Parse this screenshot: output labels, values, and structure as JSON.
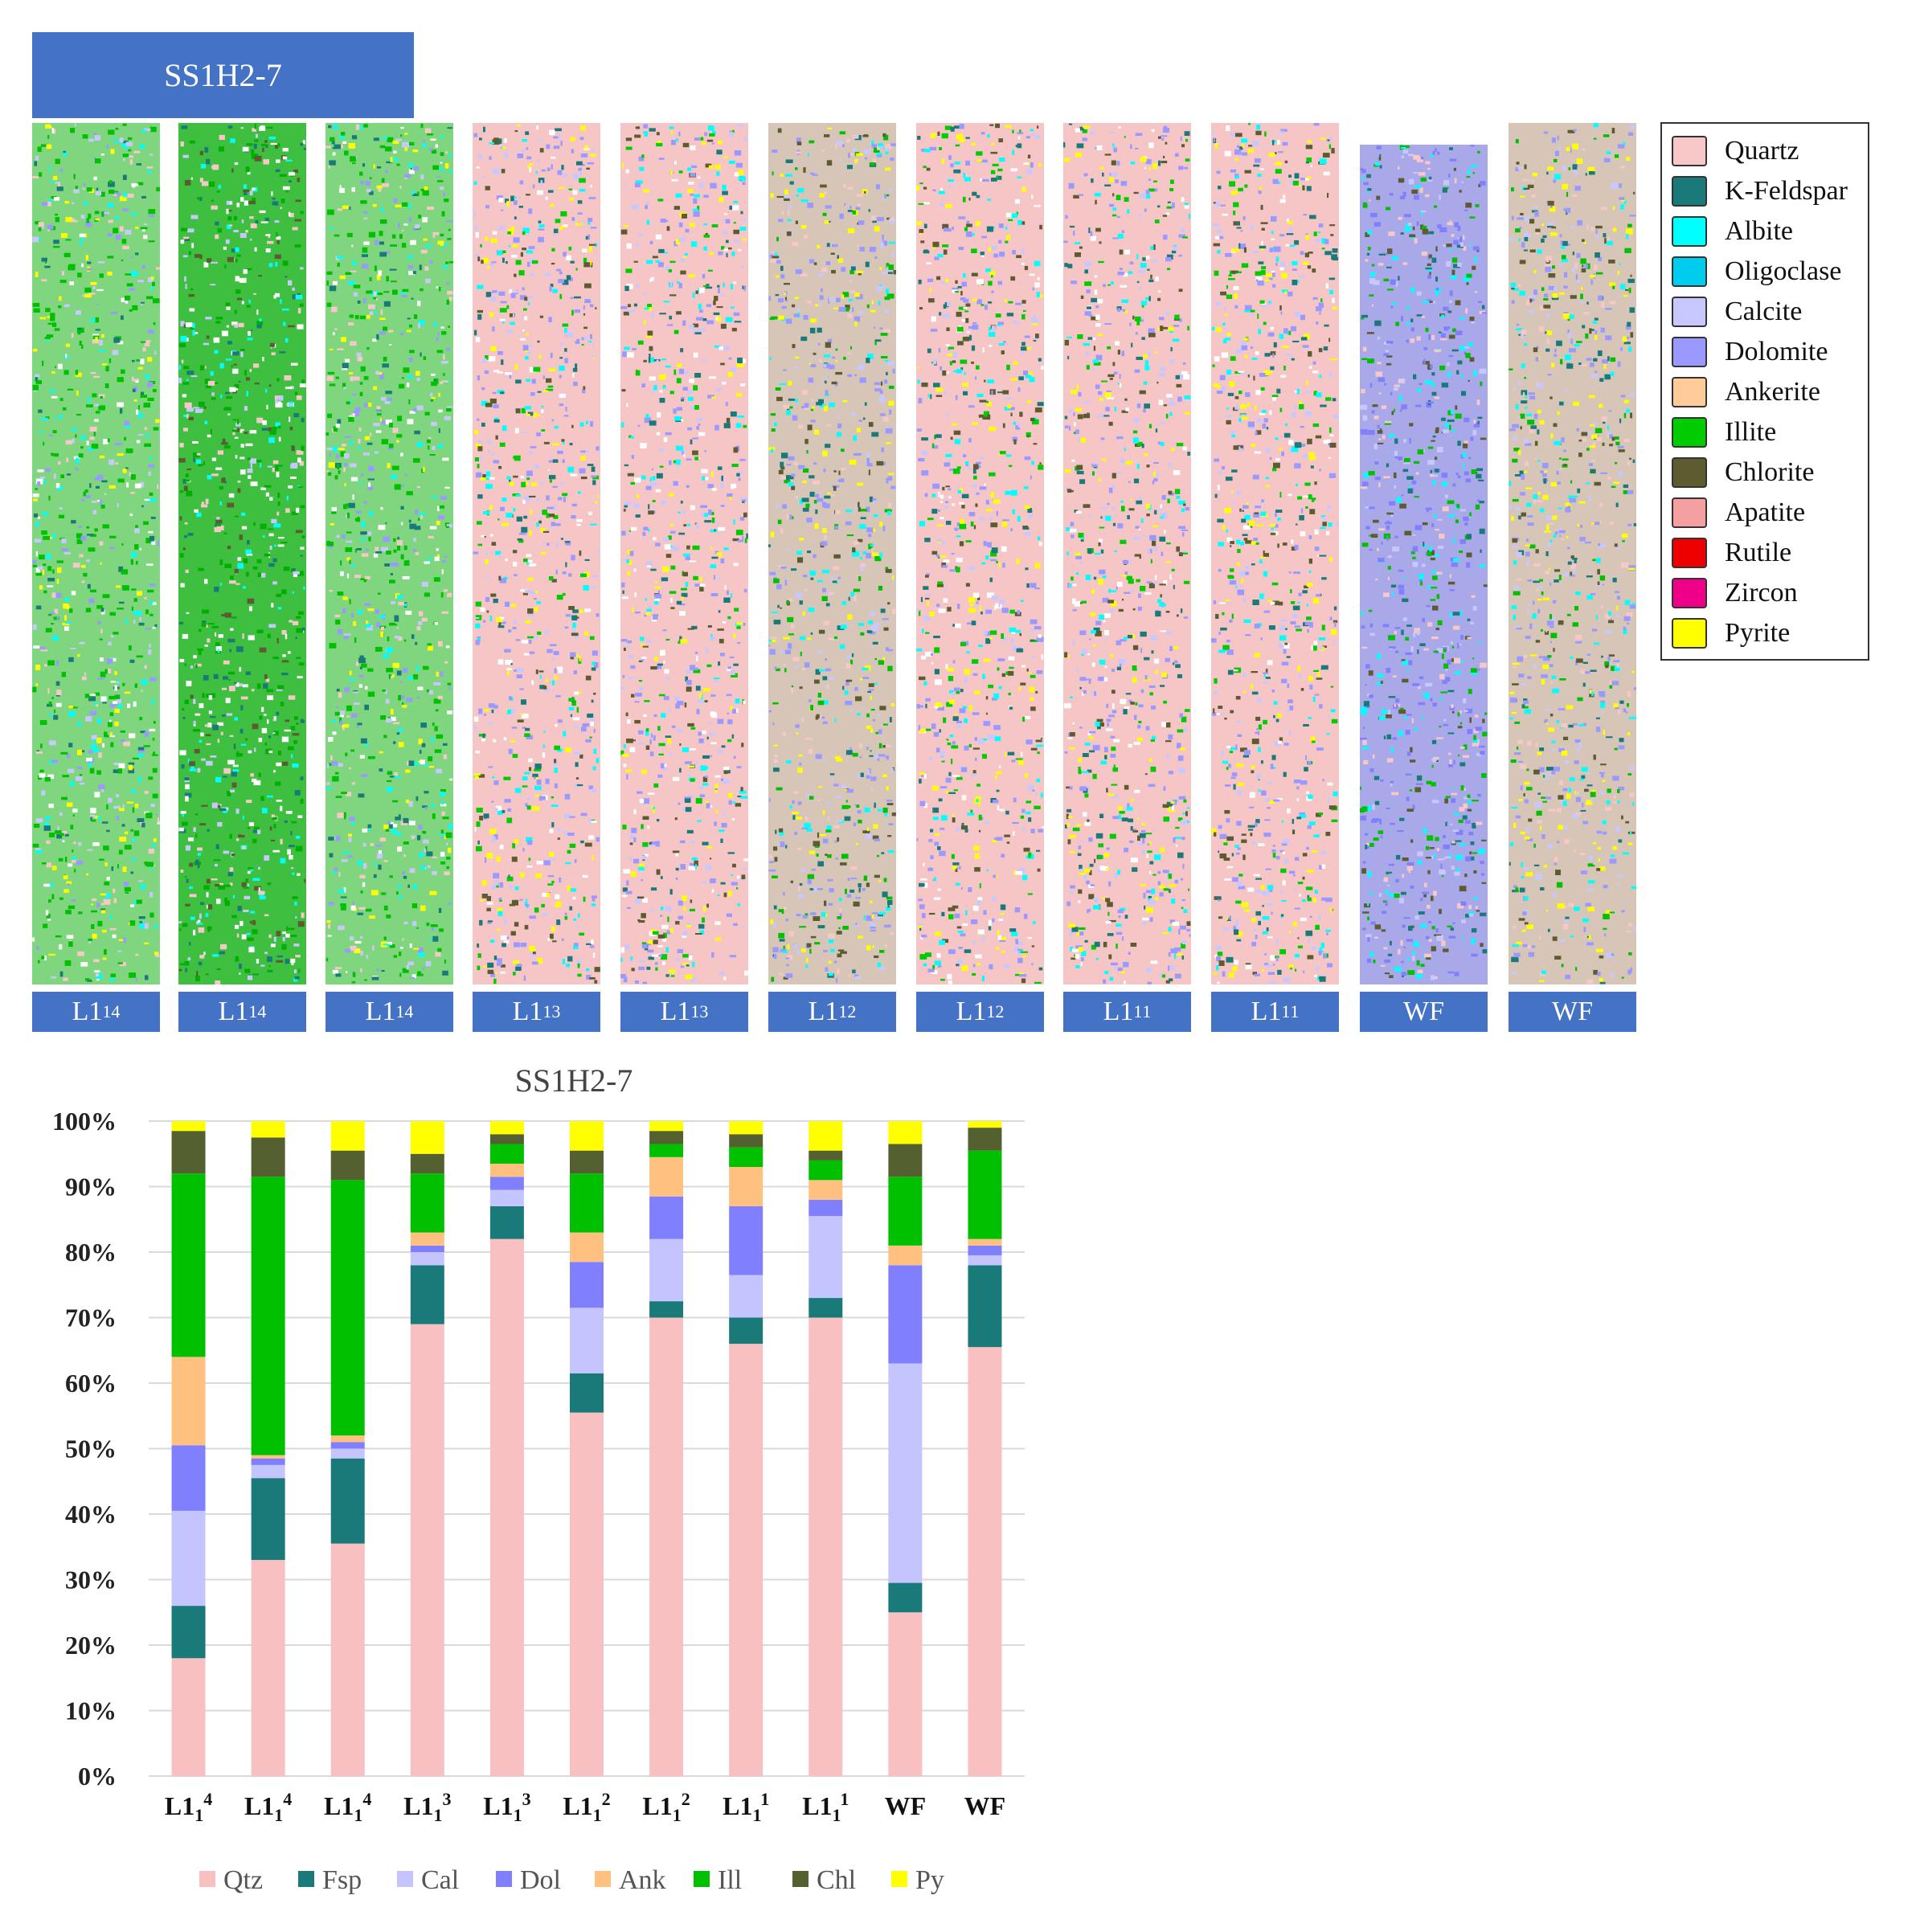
{
  "header": {
    "title": "SS1H2-7"
  },
  "cores": [
    {
      "base": "L1",
      "sub": "1",
      "sup": "4",
      "dominant": "illite"
    },
    {
      "base": "L1",
      "sub": "1",
      "sup": "4",
      "dominant": "illite-dense"
    },
    {
      "base": "L1",
      "sub": "1",
      "sup": "4",
      "dominant": "illite"
    },
    {
      "base": "L1",
      "sub": "1",
      "sup": "3",
      "dominant": "quartz"
    },
    {
      "base": "L1",
      "sub": "1",
      "sup": "3",
      "dominant": "quartz"
    },
    {
      "base": "L1",
      "sub": "1",
      "sup": "2",
      "dominant": "mixed"
    },
    {
      "base": "L1",
      "sub": "1",
      "sup": "2",
      "dominant": "quartz"
    },
    {
      "base": "L1",
      "sub": "1",
      "sup": "1",
      "dominant": "quartz"
    },
    {
      "base": "L1",
      "sub": "1",
      "sup": "1",
      "dominant": "quartz"
    },
    {
      "base": "WF",
      "sub": "",
      "sup": "",
      "dominant": "carbonate"
    },
    {
      "base": "WF",
      "sub": "",
      "sup": "",
      "dominant": "mixed"
    }
  ],
  "mineral_legend": [
    {
      "name": "Quartz",
      "color": "#f8c8c8"
    },
    {
      "name": "K-Feldspar",
      "color": "#1a7a7a"
    },
    {
      "name": "Albite",
      "color": "#00ffff"
    },
    {
      "name": "Oligoclase",
      "color": "#00ccee"
    },
    {
      "name": "Calcite",
      "color": "#c8c8ff"
    },
    {
      "name": "Dolomite",
      "color": "#9999ff"
    },
    {
      "name": "Ankerite",
      "color": "#ffcc99"
    },
    {
      "name": "Illite",
      "color": "#00cc00"
    },
    {
      "name": "Chlorite",
      "color": "#5c5c30"
    },
    {
      "name": "Apatite",
      "color": "#f4a0a0"
    },
    {
      "name": "Rutile",
      "color": "#ee0000"
    },
    {
      "name": "Zircon",
      "color": "#ee0088"
    },
    {
      "name": "Pyrite",
      "color": "#ffff00"
    }
  ],
  "chart_data": {
    "type": "bar",
    "stacked": true,
    "title": "SS1H2-7",
    "categories": [
      {
        "base": "L1",
        "sub": "1",
        "sup": "4"
      },
      {
        "base": "L1",
        "sub": "1",
        "sup": "4"
      },
      {
        "base": "L1",
        "sub": "1",
        "sup": "4"
      },
      {
        "base": "L1",
        "sub": "1",
        "sup": "3"
      },
      {
        "base": "L1",
        "sub": "1",
        "sup": "3"
      },
      {
        "base": "L1",
        "sub": "1",
        "sup": "2"
      },
      {
        "base": "L1",
        "sub": "1",
        "sup": "2"
      },
      {
        "base": "L1",
        "sub": "1",
        "sup": "1"
      },
      {
        "base": "L1",
        "sub": "1",
        "sup": "1"
      },
      {
        "base": "WF",
        "sub": "",
        "sup": ""
      },
      {
        "base": "WF",
        "sub": "",
        "sup": ""
      }
    ],
    "yticks": [
      "0%",
      "10%",
      "20%",
      "30%",
      "40%",
      "50%",
      "60%",
      "70%",
      "80%",
      "90%",
      "100%"
    ],
    "ylim": [
      0,
      100
    ],
    "legend_position": "bottom",
    "series": [
      {
        "name": "Qtz",
        "color": "#f8c0c0",
        "values": [
          18,
          33,
          35.5,
          69,
          82,
          55.5,
          70,
          66,
          70,
          25,
          65.5
        ]
      },
      {
        "name": "Fsp",
        "color": "#1a7a7a",
        "values": [
          8,
          12.5,
          13,
          9,
          5,
          6,
          2.5,
          4,
          3,
          4.5,
          12.5
        ]
      },
      {
        "name": "Cal",
        "color": "#c4c4ff",
        "values": [
          14.5,
          2,
          1.5,
          2,
          2.5,
          10,
          9.5,
          6.5,
          12.5,
          33.5,
          1.5
        ]
      },
      {
        "name": "Dol",
        "color": "#8080ff",
        "values": [
          10,
          1,
          1,
          1,
          2,
          7,
          6.5,
          10.5,
          2.5,
          15,
          1.5
        ]
      },
      {
        "name": "Ank",
        "color": "#ffc080",
        "values": [
          13.5,
          0.5,
          1,
          2,
          2,
          4.5,
          6,
          6,
          3,
          3,
          1
        ]
      },
      {
        "name": "Ill",
        "color": "#00c000",
        "values": [
          28,
          42.5,
          39,
          9,
          3,
          9,
          2,
          3,
          3,
          10.5,
          13.5
        ]
      },
      {
        "name": "Chl",
        "color": "#556030",
        "values": [
          6.5,
          6,
          4.5,
          3,
          1.5,
          3.5,
          2,
          2,
          1.5,
          5,
          3.5
        ]
      },
      {
        "name": "Py",
        "color": "#ffff00",
        "values": [
          1.5,
          2.5,
          4.5,
          5,
          2,
          4.5,
          1.5,
          2,
          4.5,
          3.5,
          1
        ]
      }
    ]
  }
}
